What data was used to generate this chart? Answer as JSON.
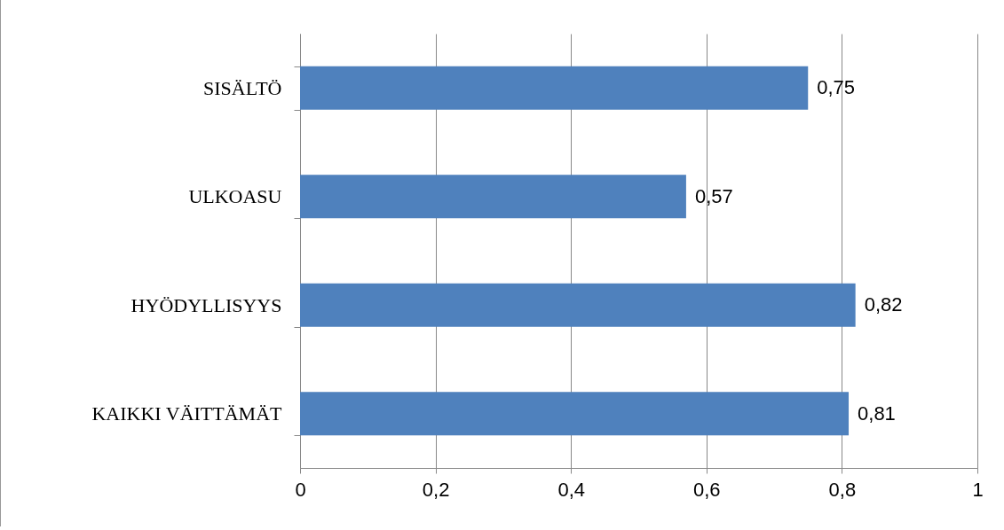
{
  "chart_data": {
    "type": "bar",
    "orientation": "horizontal",
    "categories": [
      "SISÄLTÖ",
      "ULKOASU",
      "HYÖDYLLISYYS",
      "KAIKKI VÄITTÄMÄT"
    ],
    "values": [
      0.75,
      0.57,
      0.82,
      0.81
    ],
    "value_labels": [
      "0,75",
      "0,57",
      "0,82",
      "0,81"
    ],
    "color": "#4f81bd",
    "xlim": [
      0,
      1
    ],
    "xticks": [
      0,
      {
        "value": 0.2,
        "label": "0,2"
      },
      {
        "value": 0.4,
        "label": "0,4"
      },
      {
        "value": 0.6,
        "label": "0,6"
      },
      {
        "value": 0.8,
        "label": "0,8"
      },
      1
    ],
    "grid": "x"
  }
}
